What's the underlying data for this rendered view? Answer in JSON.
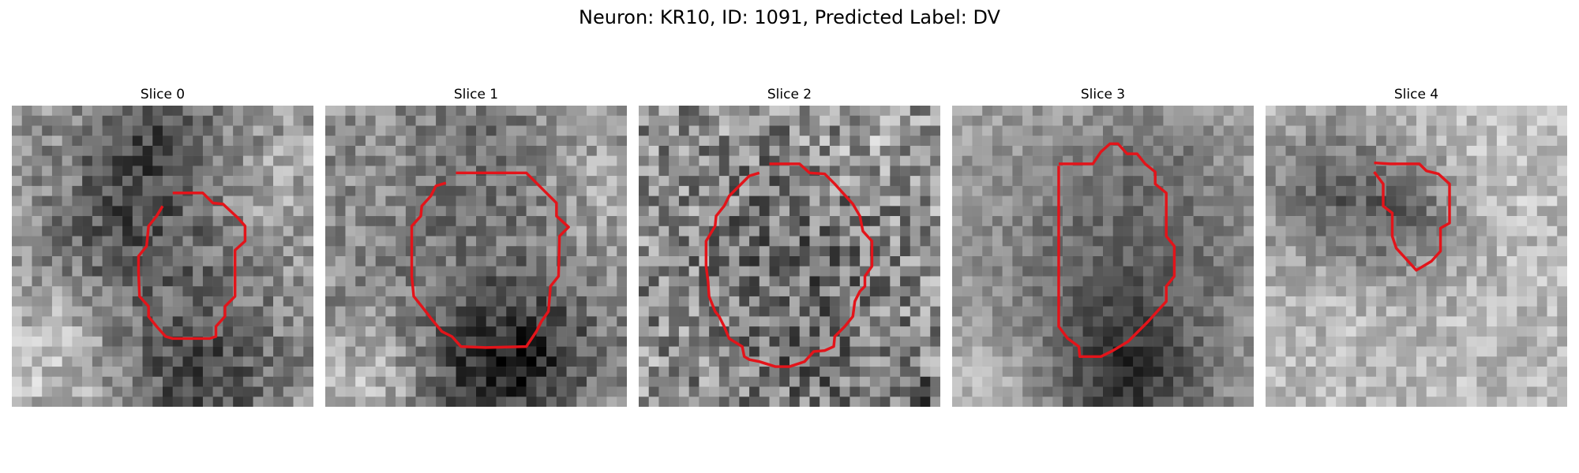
{
  "figure": {
    "title": "Neuron: KR10, ID: 1091, Predicted Label: DV"
  },
  "slices": [
    {
      "title": "Slice 0"
    },
    {
      "title": "Slice 1"
    },
    {
      "title": "Slice 2"
    },
    {
      "title": "Slice 3"
    },
    {
      "title": "Slice 4"
    }
  ],
  "colors": {
    "contour": "#e3141a",
    "background": "#ffffff"
  }
}
